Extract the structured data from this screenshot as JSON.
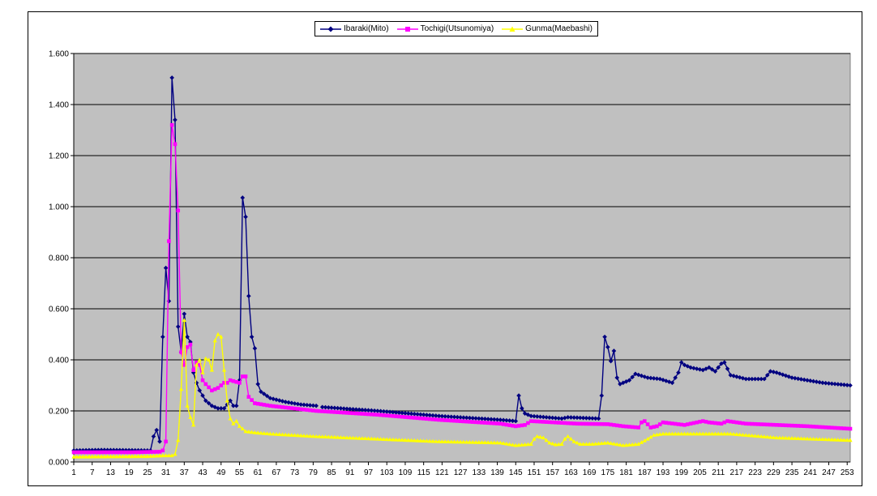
{
  "chart_data": {
    "type": "line",
    "title": "",
    "xlabel": "",
    "ylabel": "",
    "ylim": [
      0,
      1.6
    ],
    "y_ticks": [
      "0.000",
      "0.200",
      "0.400",
      "0.600",
      "0.800",
      "1.000",
      "1.200",
      "1.400",
      "1.600"
    ],
    "x_range": [
      1,
      254
    ],
    "x_ticks": [
      "1",
      "7",
      "13",
      "19",
      "25",
      "31",
      "37",
      "43",
      "49",
      "55",
      "61",
      "67",
      "73",
      "79",
      "85",
      "91",
      "97",
      "103",
      "109",
      "115",
      "121",
      "127",
      "133",
      "139",
      "145",
      "151",
      "157",
      "163",
      "169",
      "175",
      "181",
      "187",
      "193",
      "199",
      "205",
      "211",
      "217",
      "223",
      "229",
      "235",
      "241",
      "247",
      "253"
    ],
    "grid": "horizontal",
    "plot_background": "#c0c0c0",
    "legend": "top-center",
    "series": [
      {
        "name": "Ibaraki(Mito)",
        "color": "#000080",
        "marker": "diamond",
        "points": [
          [
            1,
            0.045
          ],
          [
            10,
            0.047
          ],
          [
            26,
            0.045
          ],
          [
            27,
            0.1
          ],
          [
            28,
            0.125
          ],
          [
            29,
            0.08
          ],
          [
            30,
            0.49
          ],
          [
            31,
            0.76
          ],
          [
            32,
            0.63
          ],
          [
            33,
            1.505
          ],
          [
            34,
            1.34
          ],
          [
            35,
            0.53
          ],
          [
            36,
            0.43
          ],
          [
            37,
            0.58
          ],
          [
            38,
            0.49
          ],
          [
            39,
            0.47
          ],
          [
            40,
            0.35
          ],
          [
            41,
            0.31
          ],
          [
            42,
            0.28
          ],
          [
            44,
            0.24
          ],
          [
            46,
            0.22
          ],
          [
            48,
            0.21
          ],
          [
            50,
            0.21
          ],
          [
            52,
            0.24
          ],
          [
            53,
            0.22
          ],
          [
            54,
            0.22
          ],
          [
            55,
            0.32
          ],
          [
            56,
            1.035
          ],
          [
            57,
            0.96
          ],
          [
            58,
            0.65
          ],
          [
            59,
            0.49
          ],
          [
            60,
            0.445
          ],
          [
            61,
            0.305
          ],
          [
            62,
            0.275
          ],
          [
            65,
            0.25
          ],
          [
            70,
            0.235
          ],
          [
            75,
            0.225
          ],
          [
            80,
            0.22
          ],
          [
            81,
            null
          ],
          [
            82,
            0.215
          ],
          [
            100,
            0.2
          ],
          [
            120,
            0.18
          ],
          [
            140,
            0.165
          ],
          [
            145,
            0.16
          ],
          [
            146,
            0.26
          ],
          [
            147,
            0.21
          ],
          [
            148,
            0.19
          ],
          [
            150,
            0.18
          ],
          [
            160,
            0.17
          ],
          [
            162,
            0.175
          ],
          [
            172,
            0.17
          ],
          [
            173,
            0.26
          ],
          [
            174,
            0.49
          ],
          [
            175,
            0.45
          ],
          [
            176,
            0.395
          ],
          [
            177,
            0.435
          ],
          [
            178,
            0.33
          ],
          [
            179,
            0.305
          ],
          [
            182,
            0.32
          ],
          [
            184,
            0.345
          ],
          [
            188,
            0.33
          ],
          [
            192,
            0.325
          ],
          [
            196,
            0.31
          ],
          [
            198,
            0.35
          ],
          [
            199,
            0.39
          ],
          [
            200,
            0.38
          ],
          [
            202,
            0.37
          ],
          [
            206,
            0.36
          ],
          [
            208,
            0.37
          ],
          [
            210,
            0.355
          ],
          [
            212,
            0.385
          ],
          [
            213,
            0.39
          ],
          [
            215,
            0.34
          ],
          [
            220,
            0.325
          ],
          [
            226,
            0.325
          ],
          [
            228,
            0.355
          ],
          [
            230,
            0.35
          ],
          [
            235,
            0.33
          ],
          [
            245,
            0.31
          ],
          [
            254,
            0.3
          ]
        ]
      },
      {
        "name": "Tochigi(Utsunomiya)",
        "color": "#ff00ff",
        "marker": "square",
        "points": [
          [
            1,
            0.038
          ],
          [
            20,
            0.038
          ],
          [
            29,
            0.04
          ],
          [
            30,
            0.045
          ],
          [
            31,
            0.08
          ],
          [
            32,
            0.865
          ],
          [
            33,
            1.32
          ],
          [
            34,
            1.245
          ],
          [
            35,
            0.985
          ],
          [
            36,
            0.43
          ],
          [
            37,
            0.38
          ],
          [
            38,
            0.45
          ],
          [
            39,
            0.46
          ],
          [
            40,
            0.36
          ],
          [
            41,
            0.39
          ],
          [
            42,
            0.38
          ],
          [
            43,
            0.32
          ],
          [
            44,
            0.305
          ],
          [
            46,
            0.28
          ],
          [
            48,
            0.29
          ],
          [
            50,
            0.31
          ],
          [
            51,
            0.31
          ],
          [
            52,
            0.32
          ],
          [
            55,
            0.31
          ],
          [
            56,
            0.335
          ],
          [
            57,
            0.335
          ],
          [
            58,
            0.255
          ],
          [
            60,
            0.23
          ],
          [
            65,
            0.22
          ],
          [
            80,
            0.2
          ],
          [
            100,
            0.185
          ],
          [
            120,
            0.165
          ],
          [
            140,
            0.15
          ],
          [
            145,
            0.14
          ],
          [
            148,
            0.145
          ],
          [
            150,
            0.16
          ],
          [
            165,
            0.15
          ],
          [
            175,
            0.148
          ],
          [
            180,
            0.14
          ],
          [
            185,
            0.135
          ],
          [
            186,
            0.155
          ],
          [
            187,
            0.16
          ],
          [
            189,
            0.135
          ],
          [
            191,
            0.14
          ],
          [
            193,
            0.155
          ],
          [
            200,
            0.145
          ],
          [
            206,
            0.16
          ],
          [
            208,
            0.155
          ],
          [
            212,
            0.15
          ],
          [
            214,
            0.16
          ],
          [
            220,
            0.15
          ],
          [
            240,
            0.14
          ],
          [
            254,
            0.13
          ]
        ]
      },
      {
        "name": "Gunma(Maebashi)",
        "color": "#ffff00",
        "marker": "triangle",
        "points": [
          [
            1,
            0.02
          ],
          [
            25,
            0.022
          ],
          [
            30,
            0.025
          ],
          [
            33,
            0.025
          ],
          [
            34,
            0.03
          ],
          [
            35,
            0.085
          ],
          [
            36,
            0.285
          ],
          [
            37,
            0.555
          ],
          [
            38,
            0.22
          ],
          [
            39,
            0.175
          ],
          [
            40,
            0.145
          ],
          [
            41,
            0.38
          ],
          [
            42,
            0.4
          ],
          [
            43,
            0.35
          ],
          [
            44,
            0.405
          ],
          [
            45,
            0.4
          ],
          [
            46,
            0.36
          ],
          [
            47,
            0.475
          ],
          [
            48,
            0.5
          ],
          [
            49,
            0.49
          ],
          [
            50,
            0.36
          ],
          [
            51,
            0.24
          ],
          [
            52,
            0.17
          ],
          [
            53,
            0.15
          ],
          [
            54,
            0.16
          ],
          [
            55,
            0.14
          ],
          [
            57,
            0.12
          ],
          [
            60,
            0.115
          ],
          [
            65,
            0.11
          ],
          [
            80,
            0.1
          ],
          [
            100,
            0.09
          ],
          [
            120,
            0.08
          ],
          [
            140,
            0.075
          ],
          [
            145,
            0.065
          ],
          [
            150,
            0.07
          ],
          [
            151,
            0.09
          ],
          [
            152,
            0.1
          ],
          [
            154,
            0.095
          ],
          [
            156,
            0.075
          ],
          [
            158,
            0.068
          ],
          [
            160,
            0.07
          ],
          [
            161,
            0.09
          ],
          [
            162,
            0.1
          ],
          [
            164,
            0.08
          ],
          [
            166,
            0.07
          ],
          [
            170,
            0.07
          ],
          [
            175,
            0.075
          ],
          [
            180,
            0.065
          ],
          [
            185,
            0.07
          ],
          [
            188,
            0.09
          ],
          [
            190,
            0.105
          ],
          [
            193,
            0.11
          ],
          [
            200,
            0.11
          ],
          [
            215,
            0.11
          ],
          [
            230,
            0.095
          ],
          [
            254,
            0.085
          ]
        ]
      }
    ]
  }
}
